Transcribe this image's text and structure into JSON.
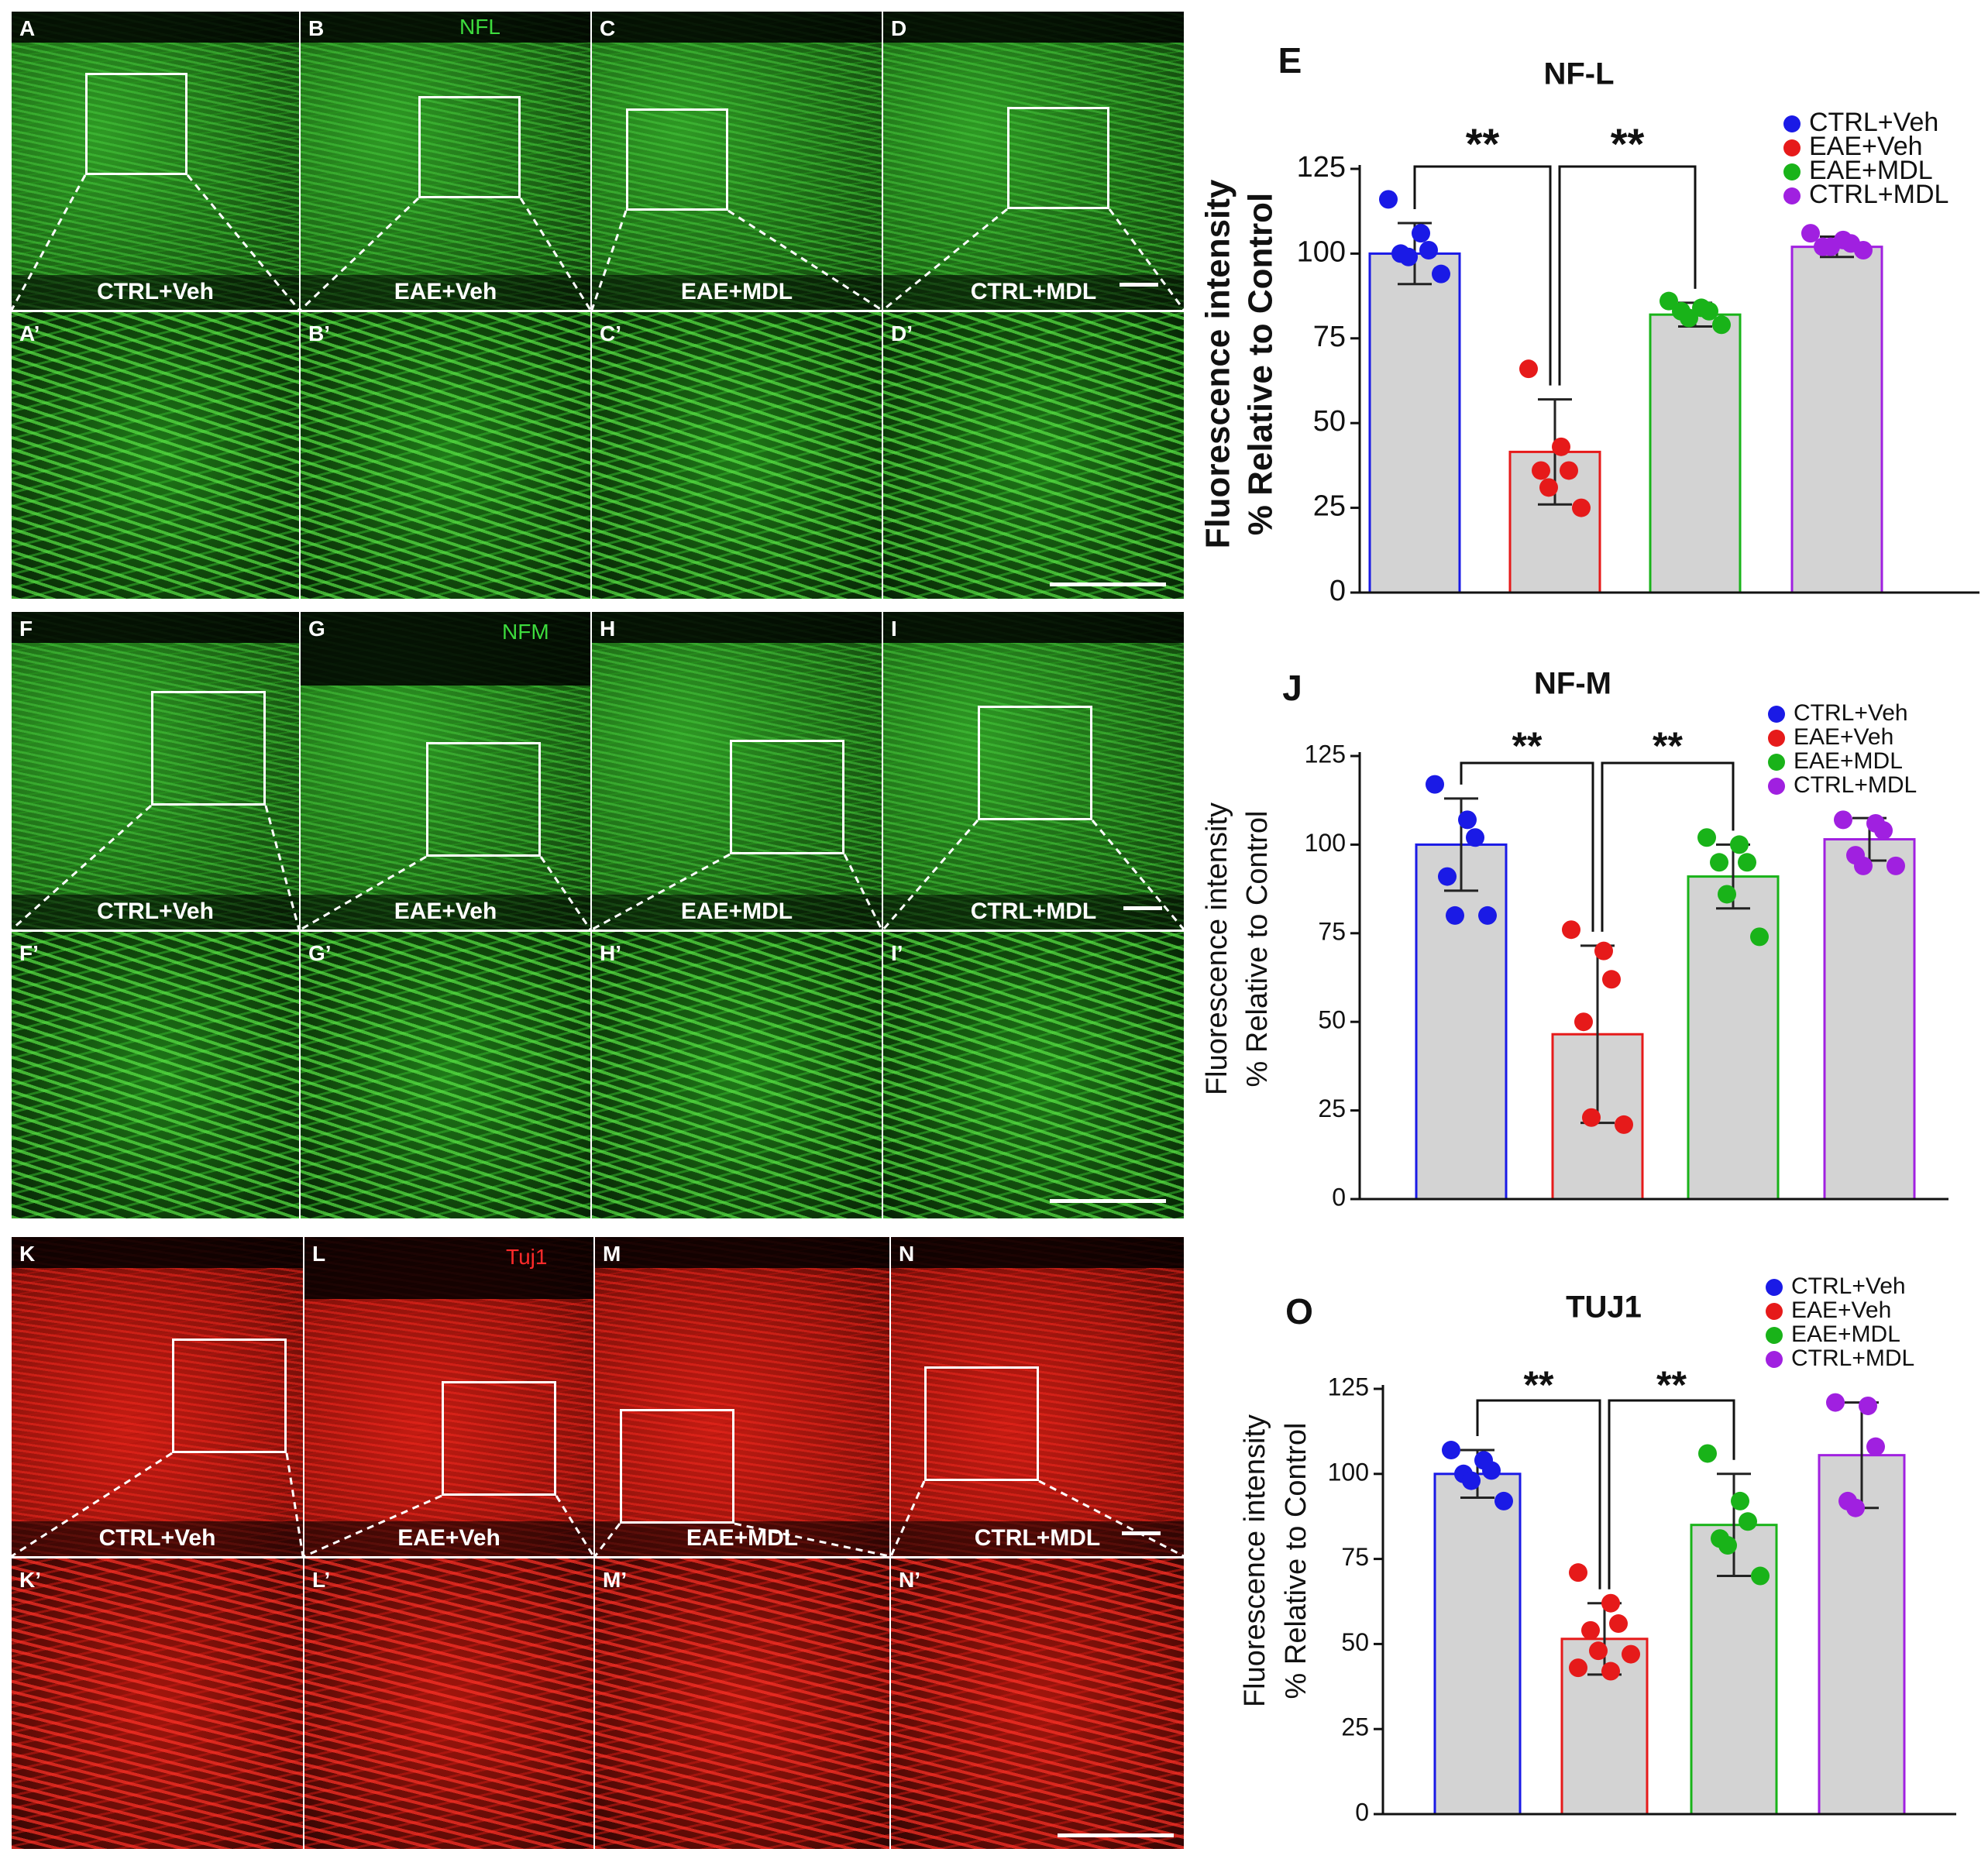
{
  "micrographs": [
    {
      "marker": "NFL",
      "marker_color": "#3ddc3d",
      "top_letters": [
        "A",
        "B",
        "C",
        "D"
      ],
      "bottom_letters": [
        "A’",
        "B’",
        "C’",
        "D’"
      ],
      "conditions": [
        "CTRL+Veh",
        "EAE+Veh",
        "EAE+MDL",
        "CTRL+MDL"
      ]
    },
    {
      "marker": "NFM",
      "marker_color": "#3ddc3d",
      "top_letters": [
        "F",
        "G",
        "H",
        "I"
      ],
      "bottom_letters": [
        "F’",
        "G’",
        "H’",
        "I’"
      ],
      "conditions": [
        "CTRL+Veh",
        "EAE+Veh",
        "EAE+MDL",
        "CTRL+MDL"
      ]
    },
    {
      "marker": "Tuj1",
      "marker_color": "#ff2a2a",
      "top_letters": [
        "K",
        "L",
        "M",
        "N"
      ],
      "bottom_letters": [
        "K’",
        "L’",
        "M’",
        "N’"
      ],
      "conditions": [
        "CTRL+Veh",
        "EAE+Veh",
        "EAE+MDL",
        "CTRL+MDL"
      ]
    }
  ],
  "chart_data": [
    {
      "panel": "E",
      "type": "bar",
      "title": "NF-L",
      "ylabel": "Fluorescence intensity",
      "ylabel2": "% Relative to Control",
      "ylim": [
        0,
        125
      ],
      "yticks": [
        "0",
        "25",
        "50",
        "75",
        "100",
        "125"
      ],
      "categories": [
        "CTRL+Veh",
        "EAE+Veh",
        "EAE+MDL",
        "CTRL+MDL"
      ],
      "colors": [
        "#1a1ae6",
        "#e61a1a",
        "#19b319",
        "#a020e0"
      ],
      "values": [
        100,
        41.5,
        82,
        102
      ],
      "errors": [
        9,
        15.5,
        3.5,
        3
      ],
      "points": [
        [
          116,
          106,
          101,
          100,
          99,
          94
        ],
        [
          66,
          43,
          36,
          36,
          31,
          25
        ],
        [
          86,
          84,
          83,
          83,
          81,
          79
        ],
        [
          106,
          104,
          103,
          102,
          102,
          101
        ]
      ],
      "significance": [
        {
          "from": 0,
          "to": 1,
          "text": "**"
        },
        {
          "from": 1,
          "to": 2,
          "text": "**"
        }
      ],
      "legend": [
        "CTRL+Veh",
        "EAE+Veh",
        "EAE+MDL",
        "CTRL+MDL"
      ]
    },
    {
      "panel": "J",
      "type": "bar",
      "title": "NF-M",
      "ylabel": "Fluorescence intensity",
      "ylabel2": "% Relative to Control",
      "ylim": [
        0,
        125
      ],
      "yticks": [
        "0",
        "25",
        "50",
        "75",
        "100",
        "125"
      ],
      "categories": [
        "CTRL+Veh",
        "EAE+Veh",
        "EAE+MDL",
        "CTRL+MDL"
      ],
      "colors": [
        "#1a1ae6",
        "#e61a1a",
        "#19b319",
        "#a020e0"
      ],
      "values": [
        100,
        46.5,
        91,
        101.5
      ],
      "errors": [
        13,
        25,
        9,
        6
      ],
      "points": [
        [
          117,
          107,
          102,
          91,
          80,
          80
        ],
        [
          76,
          70,
          62,
          50,
          23,
          21
        ],
        [
          102,
          100,
          95,
          95,
          86,
          74
        ],
        [
          107,
          106,
          104,
          97,
          94,
          94
        ]
      ],
      "significance": [
        {
          "from": 0,
          "to": 1,
          "text": "**"
        },
        {
          "from": 1,
          "to": 2,
          "text": "**"
        }
      ],
      "legend": [
        "CTRL+Veh",
        "EAE+Veh",
        "EAE+MDL",
        "CTRL+MDL"
      ]
    },
    {
      "panel": "O",
      "type": "bar",
      "title": "TUJ1",
      "ylabel": "Fluorescence intensity",
      "ylabel2": "% Relative to Control",
      "ylim": [
        0,
        125
      ],
      "yticks": [
        "0",
        "25",
        "50",
        "75",
        "100",
        "125"
      ],
      "categories": [
        "CTRL+Veh",
        "EAE+Veh",
        "EAE+MDL",
        "CTRL+MDL"
      ],
      "colors": [
        "#1a1ae6",
        "#e61a1a",
        "#19b319",
        "#a020e0"
      ],
      "values": [
        100,
        51.5,
        85,
        105.5
      ],
      "errors": [
        7,
        10.5,
        15,
        15.5
      ],
      "points": [
        [
          107,
          104,
          101,
          100,
          98,
          92
        ],
        [
          71,
          62,
          56,
          54,
          48,
          47,
          43,
          42
        ],
        [
          106,
          92,
          86,
          81,
          79,
          70
        ],
        [
          121,
          120,
          108,
          92,
          90
        ]
      ],
      "significance": [
        {
          "from": 0,
          "to": 1,
          "text": "**"
        },
        {
          "from": 1,
          "to": 2,
          "text": "**"
        }
      ],
      "legend": [
        "CTRL+Veh",
        "EAE+Veh",
        "EAE+MDL",
        "CTRL+MDL"
      ]
    }
  ]
}
